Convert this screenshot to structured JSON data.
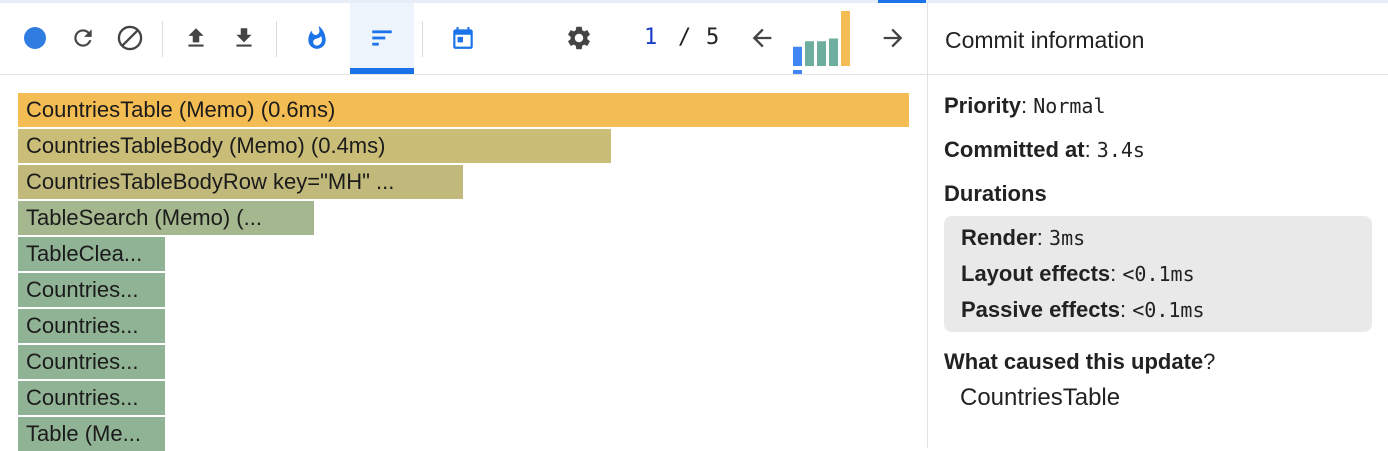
{
  "toolbar": {
    "commit_index": "1",
    "commit_separator": "/",
    "commit_total": "5",
    "commit_bars": [
      0.35,
      0.45,
      0.45,
      0.5,
      1.0
    ]
  },
  "flamegraph": {
    "bars": [
      {
        "label": "CountriesTable (Memo) (0.6ms)",
        "color": "#f4bd53"
      },
      {
        "label": "CountriesTableBody (Memo) (0.4ms)",
        "color": "#cabd78"
      },
      {
        "label": "CountriesTableBodyRow key=\"MH\" ...",
        "color": "#c1b87b"
      },
      {
        "label": "TableSearch (Memo) (...",
        "color": "#a5b78f"
      },
      {
        "label": "TableClea...",
        "color": "#91b395"
      },
      {
        "label": "Countries...",
        "color": "#91b395"
      },
      {
        "label": "Countries...",
        "color": "#91b395"
      },
      {
        "label": "Countries...",
        "color": "#91b395"
      },
      {
        "label": "Countries...",
        "color": "#91b395"
      },
      {
        "label": "Table (Me...",
        "color": "#91b395"
      }
    ]
  },
  "sidebar": {
    "title": "Commit information",
    "priority_label": "Priority",
    "priority_value": "Normal",
    "committed_label": "Committed at",
    "committed_value": "3.4s",
    "durations_label": "Durations",
    "render_label": "Render",
    "render_value": "3ms",
    "layout_label": "Layout effects",
    "layout_value": "<0.1ms",
    "passive_label": "Passive effects",
    "passive_value": "<0.1ms",
    "cause_label": "What caused this update",
    "cause_q": "?",
    "cause_value": "CountriesTable"
  },
  "colors": {
    "accent": "#1a73e8",
    "record_dot": "#2f7de1",
    "commit_selected": "#4285f4",
    "commit_bar": "#6dae9e",
    "commit_highlight": "#f4bd53"
  }
}
